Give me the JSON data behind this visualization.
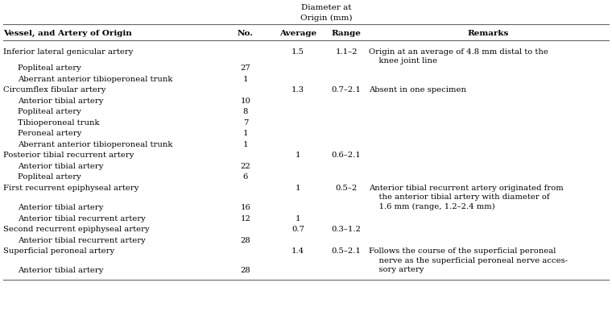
{
  "title_line1": "Diameter at",
  "title_line2": "Origin (mm)",
  "col_headers": [
    "Vessel, and Artery of Origin",
    "No.",
    "Average",
    "Range",
    "Remarks"
  ],
  "rows": [
    {
      "vessel": "Inferior lateral genicular artery",
      "indent": 0,
      "no": "",
      "avg": "1.5",
      "range": "1.1–2",
      "remarks": "Origin at an average of 4.8 mm distal to the\n    knee joint line",
      "extra_below": 0.5
    },
    {
      "vessel": "Popliteal artery",
      "indent": 1,
      "no": "27",
      "avg": "",
      "range": "",
      "remarks": "",
      "extra_below": 0
    },
    {
      "vessel": "Aberrant anterior tibioperoneal trunk",
      "indent": 1,
      "no": "1",
      "avg": "",
      "range": "",
      "remarks": "",
      "extra_below": 0
    },
    {
      "vessel": "Circumflex fibular artery",
      "indent": 0,
      "no": "",
      "avg": "1.3",
      "range": "0.7–2.1",
      "remarks": "Absent in one specimen",
      "extra_below": 0
    },
    {
      "vessel": "Anterior tibial artery",
      "indent": 1,
      "no": "10",
      "avg": "",
      "range": "",
      "remarks": "",
      "extra_below": 0
    },
    {
      "vessel": "Popliteal artery",
      "indent": 1,
      "no": "8",
      "avg": "",
      "range": "",
      "remarks": "",
      "extra_below": 0
    },
    {
      "vessel": "Tibioperoneal trunk",
      "indent": 1,
      "no": "7",
      "avg": "",
      "range": "",
      "remarks": "",
      "extra_below": 0
    },
    {
      "vessel": "Peroneal artery",
      "indent": 1,
      "no": "1",
      "avg": "",
      "range": "",
      "remarks": "",
      "extra_below": 0
    },
    {
      "vessel": "Aberrant anterior tibioperoneal trunk",
      "indent": 1,
      "no": "1",
      "avg": "",
      "range": "",
      "remarks": "",
      "extra_below": 0
    },
    {
      "vessel": "Posterior tibial recurrent artery",
      "indent": 0,
      "no": "",
      "avg": "1",
      "range": "0.6–2.1",
      "remarks": "",
      "extra_below": 0
    },
    {
      "vessel": "Anterior tibial artery",
      "indent": 1,
      "no": "22",
      "avg": "",
      "range": "",
      "remarks": "",
      "extra_below": 0
    },
    {
      "vessel": "Popliteal artery",
      "indent": 1,
      "no": "6",
      "avg": "",
      "range": "",
      "remarks": "",
      "extra_below": 0
    },
    {
      "vessel": "First recurrent epiphyseal artery",
      "indent": 0,
      "no": "",
      "avg": "1",
      "range": "0.5–2",
      "remarks": "Anterior tibial recurrent artery originated from\n    the anterior tibial artery with diameter of\n    1.6 mm (range, 1.2–2.4 mm)",
      "extra_below": 0.8
    },
    {
      "vessel": "Anterior tibial artery",
      "indent": 1,
      "no": "16",
      "avg": "",
      "range": "",
      "remarks": "",
      "extra_below": 0
    },
    {
      "vessel": "Anterior tibial recurrent artery",
      "indent": 1,
      "no": "12",
      "avg": "1",
      "range": "",
      "remarks": "",
      "extra_below": 0
    },
    {
      "vessel": "Second recurrent epiphyseal artery",
      "indent": 0,
      "no": "",
      "avg": "0.7",
      "range": "0.3–1.2",
      "remarks": "",
      "extra_below": 0
    },
    {
      "vessel": "Anterior tibial recurrent artery",
      "indent": 1,
      "no": "28",
      "avg": "",
      "range": "",
      "remarks": "",
      "extra_below": 0
    },
    {
      "vessel": "Superficial peroneal artery",
      "indent": 0,
      "no": "",
      "avg": "1.4",
      "range": "0.5–2.1",
      "remarks": "Follows the course of the superficial peroneal\n    nerve as the superficial peroneal nerve acces-\n    sory artery",
      "extra_below": 0.8
    },
    {
      "vessel": "Anterior tibial artery",
      "indent": 1,
      "no": "28",
      "avg": "",
      "range": "",
      "remarks": "",
      "extra_below": 0
    }
  ],
  "background_color": "#ffffff",
  "text_color": "#000000",
  "line_color": "#666666",
  "fontsize": 7.2,
  "header_fontsize": 7.5
}
